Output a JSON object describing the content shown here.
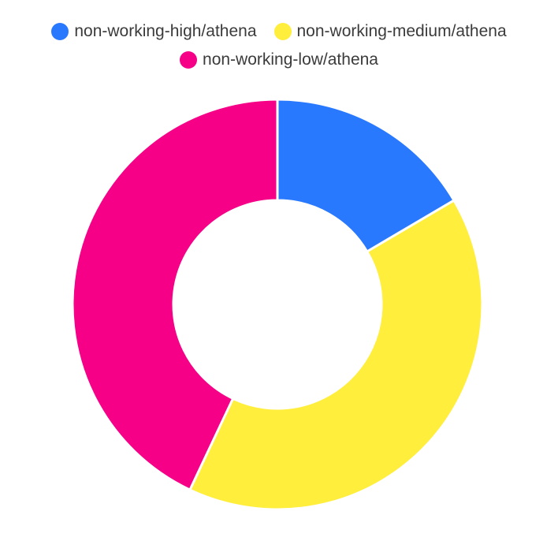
{
  "chart_data": {
    "type": "pie",
    "variant": "donut",
    "title": "",
    "legend_position": "top",
    "series": [
      {
        "name": "non-working-high/athena",
        "value": 1,
        "color": "#2979ff"
      },
      {
        "name": "non-working-medium/athena",
        "value": 2.45,
        "color": "#ffee3b"
      },
      {
        "name": "non-working-low/athena",
        "value": 2.6,
        "color": "#f50087"
      }
    ]
  }
}
